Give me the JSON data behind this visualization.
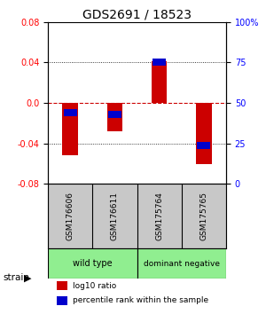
{
  "title": "GDS2691 / 18523",
  "samples": [
    "GSM176606",
    "GSM176611",
    "GSM175764",
    "GSM175765"
  ],
  "log10_ratio": [
    -0.052,
    -0.028,
    0.041,
    -0.06
  ],
  "percentile_rank": [
    0.44,
    0.43,
    0.75,
    0.24
  ],
  "ylim": [
    -0.08,
    0.08
  ],
  "yticks_left": [
    -0.08,
    -0.04,
    0.0,
    0.04,
    0.08
  ],
  "yticks_right": [
    0,
    25,
    50,
    75,
    100
  ],
  "bar_width": 0.35,
  "red_bar_color": "#cc0000",
  "blue_bar_color": "#0000cc",
  "blue_bar_height": 0.007,
  "zero_line_color": "#cc0000",
  "legend_red": "log10 ratio",
  "legend_blue": "percentile rank within the sample",
  "group_row_color": "#90ee90",
  "sample_row_color": "#c8c8c8",
  "strain_label": "strain",
  "wt_label": "wild type",
  "dn_label": "dominant negative"
}
